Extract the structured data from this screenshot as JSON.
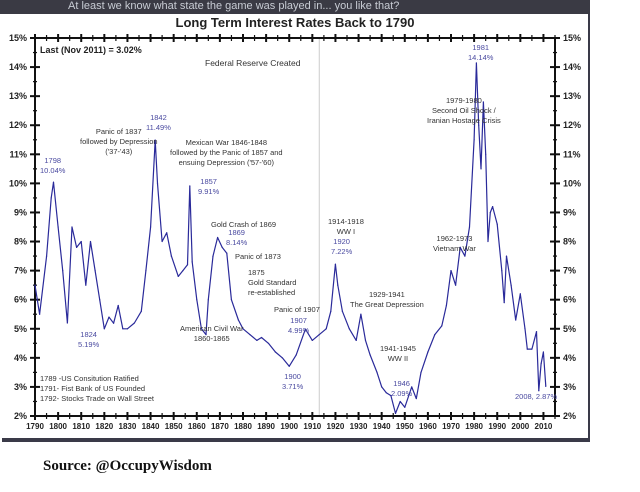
{
  "page_caption_fragment": "At least we know what state the game was played in... you like that?",
  "source": "Source: @OccupyWisdom",
  "chart_data": {
    "type": "line",
    "title": "Long Term Interest Rates Back to 1790",
    "xlabel": "",
    "ylabel": "",
    "xlim": [
      1790,
      2015
    ],
    "ylim": [
      2,
      15
    ],
    "x_ticks": [
      1790,
      1800,
      1810,
      1820,
      1830,
      1840,
      1850,
      1860,
      1870,
      1880,
      1890,
      1900,
      1910,
      1920,
      1930,
      1940,
      1950,
      1960,
      1970,
      1980,
      1990,
      2000,
      2010
    ],
    "y_ticks": [
      "2%",
      "3%",
      "4%",
      "5%",
      "6%",
      "7%",
      "8%",
      "9%",
      "10%",
      "11%",
      "12%",
      "13%",
      "14%",
      "15%"
    ],
    "grid": false,
    "line_color": "#2a2a9a",
    "series": [
      {
        "x": [
          1790,
          1792,
          1795,
          1797,
          1798,
          1800,
          1802,
          1804,
          1806,
          1808,
          1810,
          1812,
          1814,
          1816,
          1818,
          1820,
          1822,
          1824,
          1826,
          1828,
          1830,
          1833,
          1836,
          1838,
          1840,
          1842,
          1843,
          1845,
          1847,
          1849,
          1852,
          1854,
          1856,
          1857,
          1858,
          1860,
          1862,
          1864,
          1865,
          1867,
          1869,
          1871,
          1873,
          1875,
          1878,
          1880,
          1883,
          1886,
          1888,
          1891,
          1894,
          1897,
          1900,
          1903,
          1907,
          1910,
          1913,
          1916,
          1918,
          1920,
          1921,
          1923,
          1926,
          1929,
          1931,
          1933,
          1935,
          1938,
          1940,
          1942,
          1944,
          1946,
          1948,
          1950,
          1953,
          1955,
          1957,
          1960,
          1963,
          1966,
          1968,
          1970,
          1972,
          1974,
          1976,
          1978,
          1980,
          1981,
          1982,
          1983,
          1984,
          1985,
          1986,
          1987,
          1988,
          1990,
          1992,
          1993,
          1994,
          1996,
          1998,
          2000,
          2002,
          2003,
          2005,
          2007,
          2008,
          2009,
          2010,
          2011
        ],
        "y": [
          6.5,
          5.5,
          7.5,
          9.5,
          10.04,
          8.5,
          7.0,
          5.2,
          8.5,
          7.8,
          8.0,
          6.5,
          8.0,
          7.0,
          6.0,
          5.0,
          5.4,
          5.19,
          5.8,
          5.0,
          5.0,
          5.2,
          5.6,
          7.0,
          8.5,
          11.49,
          10.0,
          8.0,
          8.3,
          7.5,
          6.8,
          7.0,
          7.2,
          9.91,
          7.3,
          6.0,
          5.0,
          4.8,
          6.0,
          7.5,
          8.14,
          7.8,
          7.6,
          6.0,
          5.3,
          5.0,
          4.8,
          4.6,
          4.7,
          4.5,
          4.2,
          4.0,
          3.71,
          4.1,
          4.99,
          4.6,
          4.8,
          5.0,
          5.6,
          7.22,
          6.5,
          5.6,
          5.0,
          4.6,
          5.5,
          4.6,
          4.1,
          3.5,
          3.0,
          2.8,
          2.7,
          2.09,
          2.5,
          2.3,
          3.0,
          2.6,
          3.5,
          4.2,
          4.8,
          5.1,
          5.8,
          7.0,
          6.5,
          7.8,
          7.5,
          8.5,
          11.5,
          14.14,
          12.0,
          10.5,
          12.8,
          11.0,
          8.0,
          9.0,
          9.2,
          8.6,
          7.0,
          5.9,
          7.5,
          6.5,
          5.3,
          6.2,
          5.0,
          4.3,
          4.3,
          4.9,
          2.87,
          3.8,
          4.2,
          3.02
        ]
      }
    ],
    "annotations": {
      "last": "Last (Nov 2011) = 3.02%",
      "fed": "Federal Reserve Created",
      "y1798": [
        "1798",
        "10.04%"
      ],
      "panic1837": [
        "Panic of 1837",
        "followed by Depression",
        "('37-'43)"
      ],
      "y1842": [
        "1842",
        "11.49%"
      ],
      "mexican": [
        "Mexican War 1846-1848",
        "followed by the Panic of 1857 and",
        "ensuing Depression ('57-'60)"
      ],
      "y1857": [
        "1857",
        "9.91%"
      ],
      "gold1869": "Gold Crash of 1869",
      "y1869": [
        "1869",
        "8.14%"
      ],
      "panic1873": "Panic of 1873",
      "gold1875": [
        "1875",
        "Gold Standard",
        "re-established"
      ],
      "civilwar": [
        "American Civil War",
        "1860-1865"
      ],
      "panic1907": "Panic of 1907",
      "y1907": [
        "1907",
        "4.99%"
      ],
      "y1900": [
        "1900",
        "3.71%"
      ],
      "y1824": [
        "1824",
        "5.19%"
      ],
      "ww1": [
        "1914-1918",
        "WW I"
      ],
      "y1920": [
        "1920",
        "7.22%"
      ],
      "depression": [
        "1929-1941",
        "The Great Depression"
      ],
      "ww2": [
        "1941-1945",
        "WW II"
      ],
      "y1946": [
        "1946",
        "2.09%"
      ],
      "vietnam": [
        "1962-1973",
        "Vietnam War"
      ],
      "oil": [
        "1979-1980",
        "Second Oil Shock /",
        "Iranian Hostage Crisis"
      ],
      "y1981": [
        "1981",
        "14.14%"
      ],
      "y2008": "2008, 2.87%",
      "notes": [
        "1789 -US Consitution Ratified",
        "1791- Fist Bank of US Founded",
        "1792- Stocks Trade on Wall Street"
      ]
    }
  }
}
